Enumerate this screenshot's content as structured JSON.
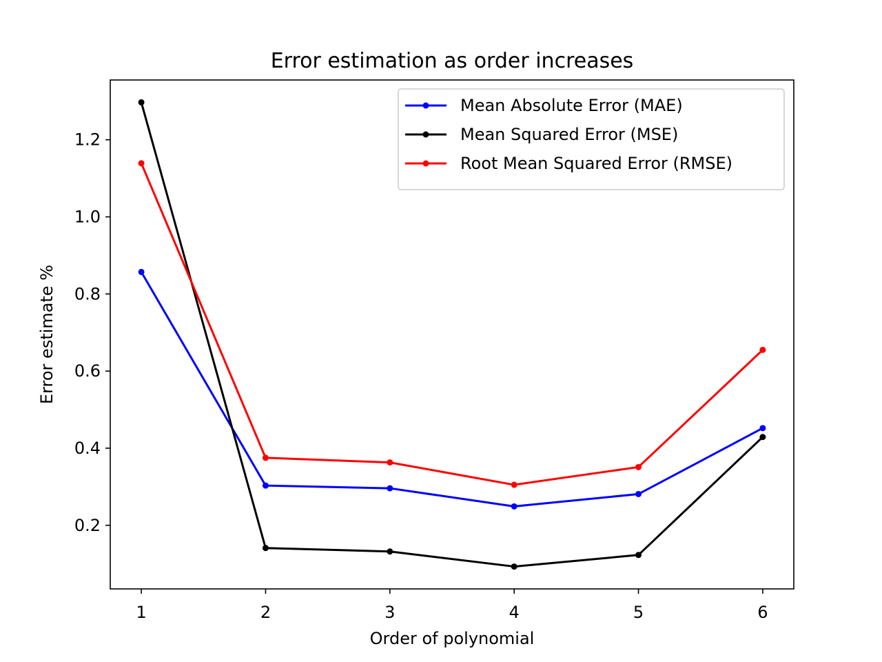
{
  "chart_data": {
    "type": "line",
    "title": "Error estimation as order increases",
    "xlabel": "Order of polynomial",
    "ylabel": "Error estimate %",
    "x": [
      1,
      2,
      3,
      4,
      5,
      6
    ],
    "xticks": [
      1,
      2,
      3,
      4,
      5,
      6
    ],
    "yticks": [
      0.2,
      0.4,
      0.6,
      0.8,
      1.0,
      1.2
    ],
    "ytick_labels": [
      "0.2",
      "0.4",
      "0.6",
      "0.8",
      "1.0",
      "1.2"
    ],
    "xlim": [
      0.75,
      6.25
    ],
    "ylim": [
      0.035,
      1.355
    ],
    "grid": false,
    "legend_position": "top-right",
    "series": [
      {
        "name": "Mean Absolute Error (MAE)",
        "color": "#0000ff",
        "values": [
          0.857,
          0.303,
          0.296,
          0.249,
          0.281,
          0.452
        ]
      },
      {
        "name": "Mean Squared Error (MSE)",
        "color": "#000000",
        "values": [
          1.297,
          0.141,
          0.132,
          0.093,
          0.123,
          0.429
        ]
      },
      {
        "name": "Root Mean Squared Error (RMSE)",
        "color": "#ff0000",
        "values": [
          1.139,
          0.375,
          0.363,
          0.305,
          0.351,
          0.655
        ]
      }
    ]
  }
}
